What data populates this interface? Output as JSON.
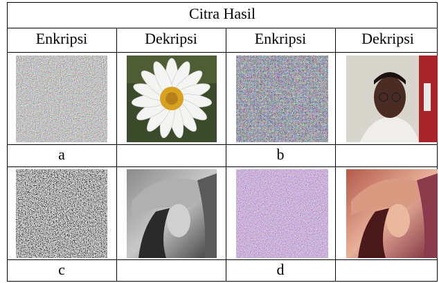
{
  "table": {
    "title": "Citra Hasil",
    "headers": [
      "Enkripsi",
      "Dekripsi",
      "Enkripsi",
      "Dekripsi"
    ],
    "captions": [
      "a",
      "b",
      "c",
      "d"
    ]
  }
}
